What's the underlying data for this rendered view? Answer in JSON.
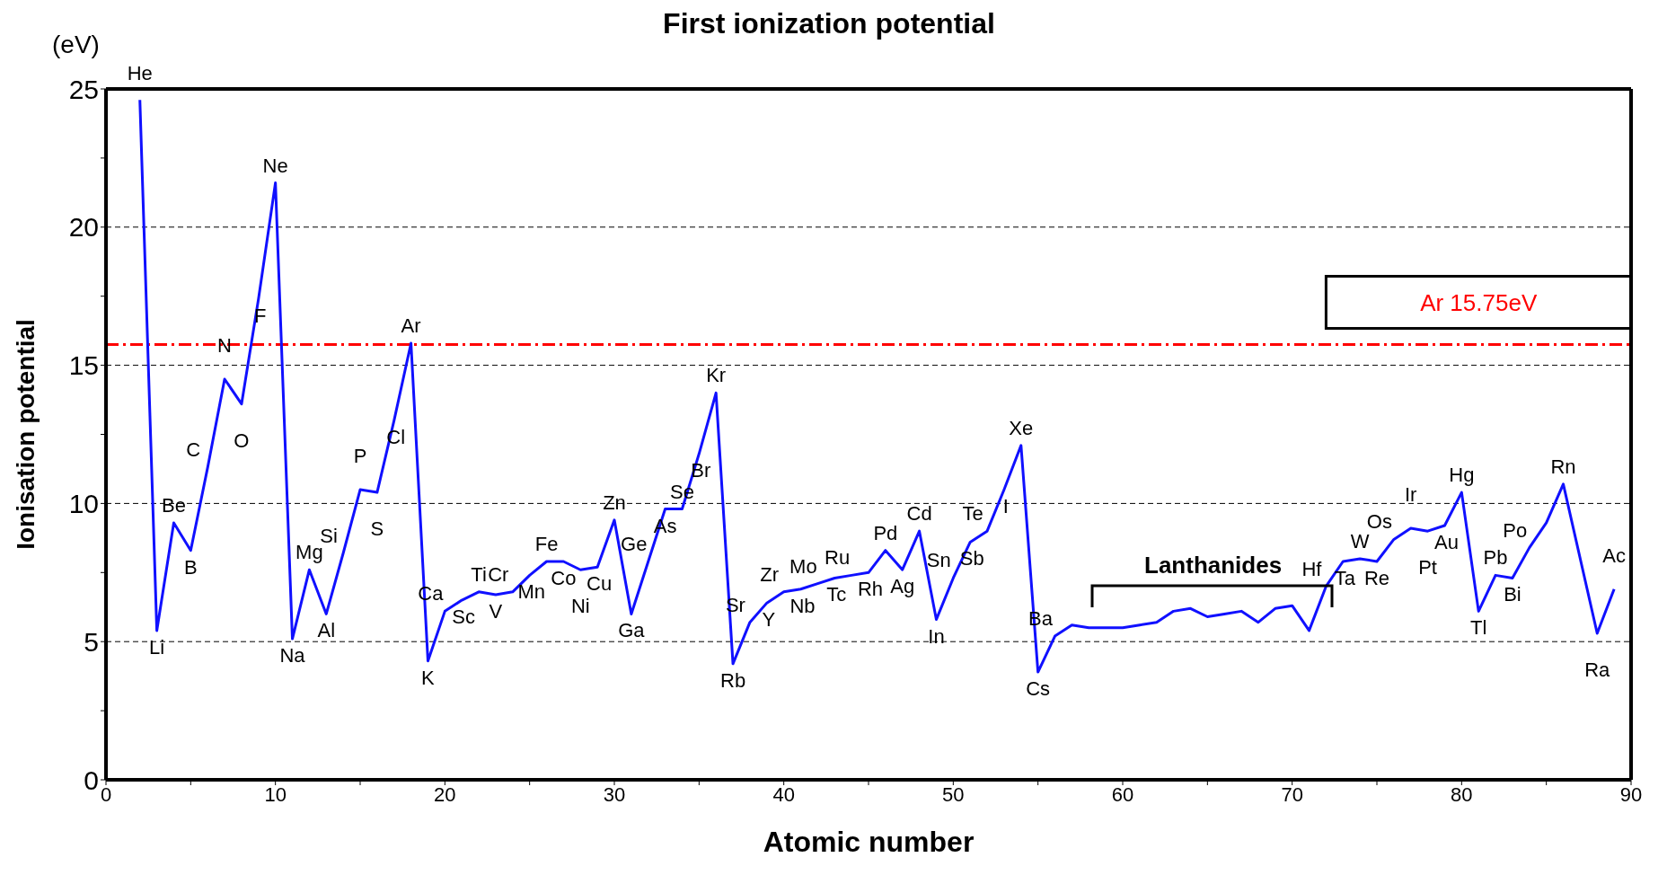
{
  "chart_data": {
    "type": "line",
    "title": "First ionization potential",
    "xlabel": "Atomic number",
    "ylabel": "Ionisation potential",
    "xlim": [
      0,
      90
    ],
    "xticks": [
      0,
      {
        "value": 5,
        "label": null
      },
      10,
      {
        "value": 15,
        "label": null
      },
      20,
      {
        "value": 25,
        "label": null
      },
      30,
      {
        "value": 35,
        "label": null
      },
      40,
      {
        "value": 45,
        "label": null
      },
      50,
      {
        "value": 55,
        "label": null
      },
      60,
      {
        "value": 65,
        "label": null
      },
      70,
      {
        "value": 75,
        "label": null
      },
      80,
      {
        "value": 85,
        "label": null
      },
      90
    ],
    "ylim": [
      0,
      25
    ],
    "yticks": [
      0,
      {
        "value": 2.5,
        "label": null
      },
      5,
      {
        "value": 7.5,
        "label": null
      },
      10,
      {
        "value": 12.5,
        "label": null
      },
      15,
      {
        "value": 17.5,
        "label": null
      },
      20,
      {
        "value": 22.5,
        "label": null
      },
      25
    ],
    "grid": "y",
    "marker": "none",
    "line_style": "solid",
    "series": [
      {
        "color": "#1010ff",
        "x": [
          2,
          3,
          4,
          5,
          6,
          7,
          8,
          9,
          10,
          11,
          12,
          13,
          14,
          15,
          16,
          17,
          18,
          19,
          20,
          21,
          22,
          23,
          24,
          25,
          26,
          27,
          28,
          29,
          30,
          31,
          32,
          33,
          34,
          35,
          36,
          37,
          38,
          39,
          40,
          41,
          42,
          43,
          44,
          45,
          46,
          47,
          48,
          49,
          50,
          51,
          52,
          53,
          54,
          55,
          56,
          57,
          58,
          59,
          60,
          61,
          62,
          63,
          64,
          65,
          66,
          67,
          68,
          69,
          70,
          71,
          72,
          73,
          74,
          75,
          76,
          77,
          78,
          79,
          80,
          81,
          82,
          83,
          84,
          85,
          86,
          88,
          89
        ],
        "values": [
          24.6,
          5.4,
          9.3,
          8.3,
          11.3,
          14.5,
          13.6,
          17.4,
          21.6,
          5.1,
          7.6,
          6.0,
          8.2,
          10.5,
          10.4,
          13.0,
          15.8,
          4.3,
          6.1,
          6.5,
          6.8,
          6.7,
          6.8,
          7.4,
          7.9,
          7.9,
          7.6,
          7.7,
          9.4,
          6.0,
          7.9,
          9.8,
          9.8,
          11.8,
          14.0,
          4.2,
          5.7,
          6.4,
          6.8,
          6.9,
          7.1,
          7.3,
          7.4,
          7.5,
          8.3,
          7.6,
          9.0,
          5.8,
          7.3,
          8.6,
          9.0,
          10.5,
          12.1,
          3.9,
          5.2,
          5.6,
          5.5,
          5.5,
          5.5,
          5.6,
          5.7,
          6.1,
          6.2,
          5.9,
          6.0,
          6.1,
          5.7,
          6.2,
          6.3,
          5.4,
          7.0,
          7.9,
          8.0,
          7.9,
          8.7,
          9.1,
          9.0,
          9.2,
          10.4,
          6.1,
          7.4,
          7.3,
          8.4,
          9.3,
          10.7,
          5.3,
          6.9
        ]
      }
    ],
    "ref_lines": [
      {
        "axis": "y",
        "value": 15.75,
        "label": "Ar 15.75eV",
        "color": "#ff0000",
        "line_style": "dashed"
      }
    ],
    "annotations": [
      "(eV)",
      "Lanthanides",
      {
        "text": "He",
        "x": 2,
        "y": 24.6
      },
      {
        "text": "Li",
        "x": 3,
        "y": 5.4
      },
      {
        "text": "Be",
        "x": 4,
        "y": 9.3
      },
      {
        "text": "B",
        "x": 5,
        "y": 8.3
      },
      {
        "text": "C",
        "x": 6,
        "y": 11.3
      },
      {
        "text": "N",
        "x": 7,
        "y": 14.5
      },
      {
        "text": "O",
        "x": 8,
        "y": 13.6
      },
      {
        "text": "F",
        "x": 9,
        "y": 17.4
      },
      {
        "text": "Ne",
        "x": 10,
        "y": 21.6
      },
      {
        "text": "Na",
        "x": 11,
        "y": 5.1
      },
      {
        "text": "Mg",
        "x": 12,
        "y": 7.6
      },
      {
        "text": "Al",
        "x": 13,
        "y": 6.0
      },
      {
        "text": "Si",
        "x": 14,
        "y": 8.2
      },
      {
        "text": "P",
        "x": 15,
        "y": 10.5
      },
      {
        "text": "S",
        "x": 16,
        "y": 10.4
      },
      {
        "text": "Cl",
        "x": 17,
        "y": 13.0
      },
      {
        "text": "Ar",
        "x": 18,
        "y": 15.8
      },
      {
        "text": "K",
        "x": 19,
        "y": 4.3
      },
      {
        "text": "Ca",
        "x": 20,
        "y": 6.1
      },
      {
        "text": "Sc",
        "x": 21,
        "y": 6.5
      },
      {
        "text": "Ti",
        "x": 22,
        "y": 6.8
      },
      {
        "text": "V",
        "x": 23,
        "y": 6.7
      },
      {
        "text": "Cr",
        "x": 24,
        "y": 6.8
      },
      {
        "text": "Mn",
        "x": 25,
        "y": 7.4
      },
      {
        "text": "Fe",
        "x": 26,
        "y": 7.9
      },
      {
        "text": "Co",
        "x": 27,
        "y": 7.9
      },
      {
        "text": "Ni",
        "x": 28,
        "y": 7.6
      },
      {
        "text": "Cu",
        "x": 29,
        "y": 7.7
      },
      {
        "text": "Zn",
        "x": 30,
        "y": 9.4
      },
      {
        "text": "Ga",
        "x": 31,
        "y": 6.0
      },
      {
        "text": "Ge",
        "x": 32,
        "y": 7.9
      },
      {
        "text": "As",
        "x": 33,
        "y": 9.8
      },
      {
        "text": "Se",
        "x": 34,
        "y": 9.8
      },
      {
        "text": "Br",
        "x": 35,
        "y": 11.8
      },
      {
        "text": "Kr",
        "x": 36,
        "y": 14.0
      },
      {
        "text": "Rb",
        "x": 37,
        "y": 4.2
      },
      {
        "text": "Sr",
        "x": 38,
        "y": 5.7
      },
      {
        "text": "Y",
        "x": 39,
        "y": 6.4
      },
      {
        "text": "Zr",
        "x": 40,
        "y": 6.8
      },
      {
        "text": "Nb",
        "x": 41,
        "y": 6.9
      },
      {
        "text": "Mo",
        "x": 42,
        "y": 7.1
      },
      {
        "text": "Tc",
        "x": 43,
        "y": 7.3
      },
      {
        "text": "Ru",
        "x": 44,
        "y": 7.4
      },
      {
        "text": "Rh",
        "x": 45,
        "y": 7.5
      },
      {
        "text": "Pd",
        "x": 46,
        "y": 8.3
      },
      {
        "text": "Ag",
        "x": 47,
        "y": 7.6
      },
      {
        "text": "Cd",
        "x": 48,
        "y": 9.0
      },
      {
        "text": "In",
        "x": 49,
        "y": 5.8
      },
      {
        "text": "Sn",
        "x": 50,
        "y": 7.3
      },
      {
        "text": "Sb",
        "x": 51,
        "y": 8.6
      },
      {
        "text": "Te",
        "x": 52,
        "y": 9.0
      },
      {
        "text": "I",
        "x": 53,
        "y": 10.5
      },
      {
        "text": "Xe",
        "x": 54,
        "y": 12.1
      },
      {
        "text": "Cs",
        "x": 55,
        "y": 3.9
      },
      {
        "text": "Ba",
        "x": 56,
        "y": 5.2
      },
      {
        "text": "Hf",
        "x": 72,
        "y": 7.0
      },
      {
        "text": "Ta",
        "x": 73,
        "y": 7.9
      },
      {
        "text": "W",
        "x": 74,
        "y": 8.0
      },
      {
        "text": "Re",
        "x": 75,
        "y": 7.9
      },
      {
        "text": "Os",
        "x": 76,
        "y": 8.7
      },
      {
        "text": "Ir",
        "x": 77,
        "y": 9.1
      },
      {
        "text": "Pt",
        "x": 78,
        "y": 9.0
      },
      {
        "text": "Au",
        "x": 79,
        "y": 9.2
      },
      {
        "text": "Hg",
        "x": 80,
        "y": 10.4
      },
      {
        "text": "Tl",
        "x": 81,
        "y": 6.1
      },
      {
        "text": "Pb",
        "x": 82,
        "y": 7.4
      },
      {
        "text": "Bi",
        "x": 83,
        "y": 7.3
      },
      {
        "text": "Po",
        "x": 84,
        "y": 8.4
      },
      {
        "text": "Rn",
        "x": 86,
        "y": 10.7
      },
      {
        "text": "Ra",
        "x": 88,
        "y": 5.3
      },
      {
        "text": "Ac",
        "x": 89,
        "y": 6.9
      }
    ]
  }
}
